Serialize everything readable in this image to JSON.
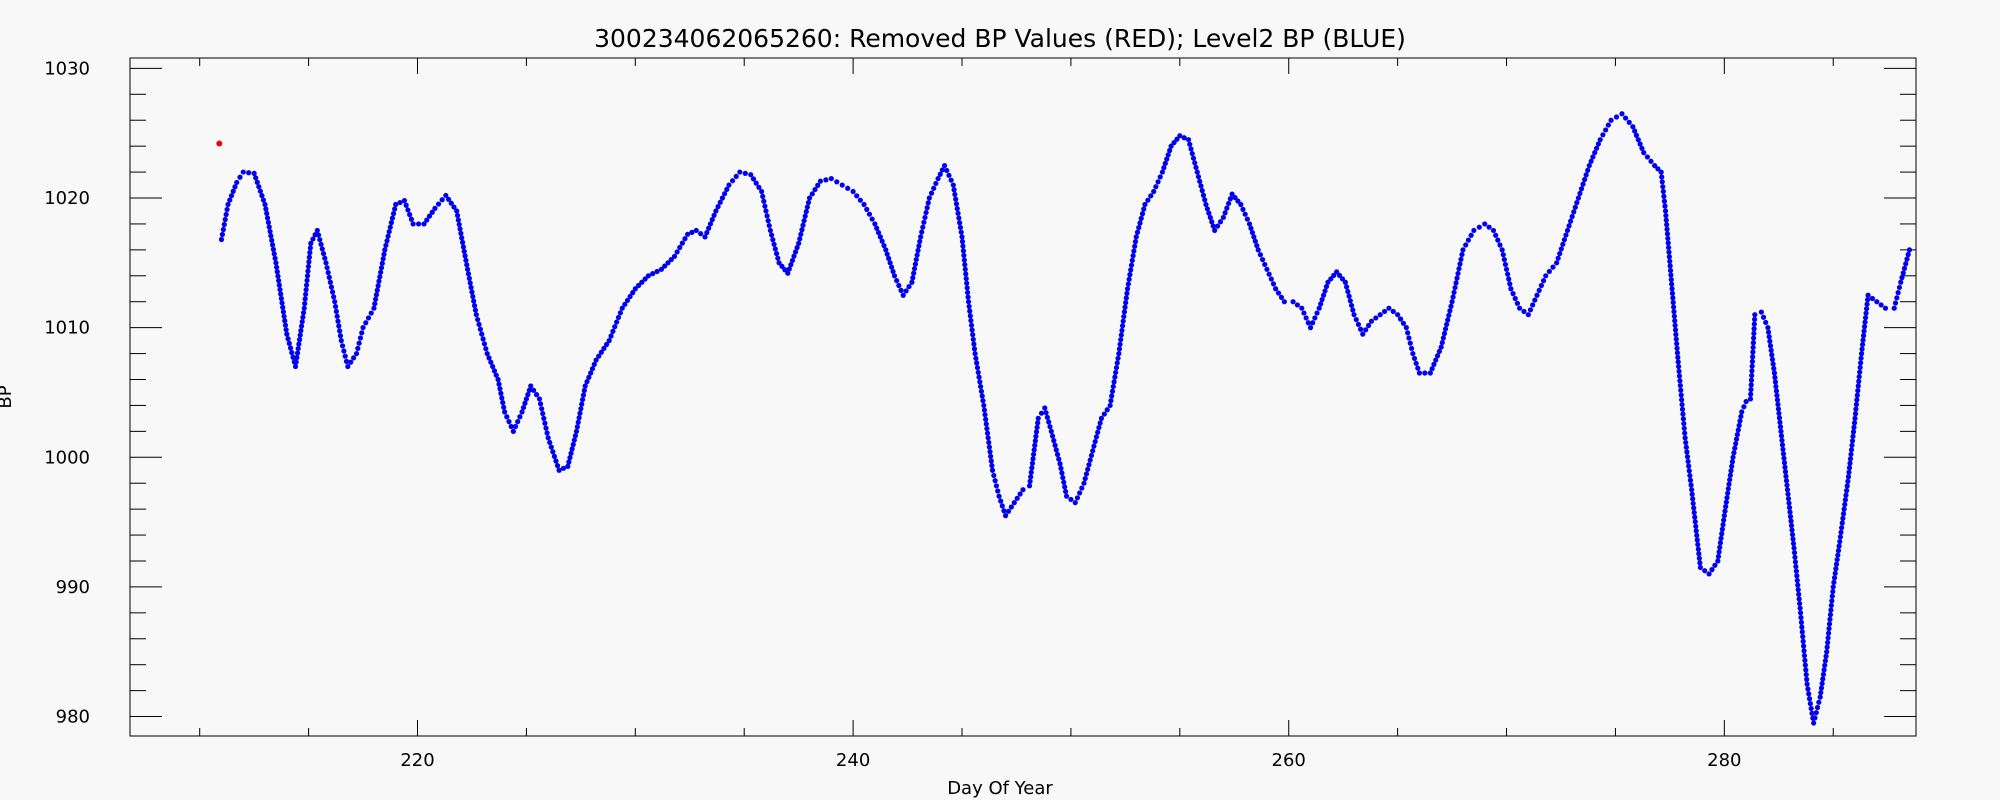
{
  "colors": {
    "background": "#f8f8f8",
    "level2": "#0000ee",
    "removed": "#ee0000"
  },
  "chart_data": {
    "type": "scatter",
    "title": "300234062065260: Removed BP Values (RED); Level2 BP (BLUE)",
    "xlabel": "Day Of Year",
    "ylabel": "BP",
    "xlim": [
      206.8,
      288.8
    ],
    "ylim": [
      978.5,
      1030.8
    ],
    "xticks": [
      220,
      240,
      260,
      280
    ],
    "yticks": [
      980,
      990,
      1000,
      1010,
      1020,
      1030
    ],
    "x_minor_step": 5,
    "y_minor_step": 2,
    "grid": false,
    "series": [
      {
        "name": "Level2 BP",
        "color": "#0000ee",
        "points": [
          [
            211.0,
            1016.8
          ],
          [
            211.3,
            1019.5
          ],
          [
            211.7,
            1021.2
          ],
          [
            212.0,
            1022.0
          ],
          [
            212.5,
            1021.9
          ],
          [
            213.0,
            1019.5
          ],
          [
            213.5,
            1015.0
          ],
          [
            214.0,
            1009.5
          ],
          [
            214.4,
            1007.0
          ],
          [
            214.8,
            1011.5
          ],
          [
            215.1,
            1016.5
          ],
          [
            215.4,
            1017.5
          ],
          [
            215.8,
            1015.0
          ],
          [
            216.2,
            1012.0
          ],
          [
            216.5,
            1009.0
          ],
          [
            216.8,
            1007.0
          ],
          [
            217.2,
            1008.0
          ],
          [
            217.5,
            1010.0
          ],
          [
            218.0,
            1011.5
          ],
          [
            218.5,
            1016.0
          ],
          [
            219.0,
            1019.5
          ],
          [
            219.4,
            1019.8
          ],
          [
            219.8,
            1018.0
          ],
          [
            220.3,
            1018.0
          ],
          [
            220.8,
            1019.2
          ],
          [
            221.3,
            1020.2
          ],
          [
            221.8,
            1019.0
          ],
          [
            222.3,
            1014.5
          ],
          [
            222.7,
            1011.0
          ],
          [
            223.2,
            1008.0
          ],
          [
            223.7,
            1006.0
          ],
          [
            224.0,
            1003.5
          ],
          [
            224.4,
            1002.0
          ],
          [
            224.8,
            1003.5
          ],
          [
            225.2,
            1005.5
          ],
          [
            225.6,
            1004.5
          ],
          [
            226.0,
            1001.5
          ],
          [
            226.5,
            999.0
          ],
          [
            226.9,
            999.3
          ],
          [
            227.3,
            1002.0
          ],
          [
            227.7,
            1005.5
          ],
          [
            228.2,
            1007.5
          ],
          [
            228.8,
            1009.0
          ],
          [
            229.4,
            1011.5
          ],
          [
            230.0,
            1013.0
          ],
          [
            230.6,
            1014.0
          ],
          [
            231.2,
            1014.5
          ],
          [
            231.8,
            1015.5
          ],
          [
            232.4,
            1017.2
          ],
          [
            232.8,
            1017.5
          ],
          [
            233.2,
            1017.0
          ],
          [
            233.7,
            1019.0
          ],
          [
            234.3,
            1021.0
          ],
          [
            234.8,
            1022.0
          ],
          [
            235.3,
            1021.8
          ],
          [
            235.8,
            1020.5
          ],
          [
            236.2,
            1017.5
          ],
          [
            236.6,
            1015.0
          ],
          [
            237.0,
            1014.2
          ],
          [
            237.5,
            1016.5
          ],
          [
            238.0,
            1020.0
          ],
          [
            238.5,
            1021.3
          ],
          [
            239.0,
            1021.5
          ],
          [
            239.5,
            1021.0
          ],
          [
            240.0,
            1020.5
          ],
          [
            240.5,
            1019.5
          ],
          [
            241.0,
            1018.0
          ],
          [
            241.5,
            1016.0
          ],
          [
            241.9,
            1014.0
          ],
          [
            242.3,
            1012.5
          ],
          [
            242.7,
            1013.5
          ],
          [
            243.1,
            1017.0
          ],
          [
            243.5,
            1020.0
          ],
          [
            243.9,
            1021.5
          ],
          [
            244.2,
            1022.5
          ],
          [
            244.6,
            1021.0
          ],
          [
            245.0,
            1017.0
          ],
          [
            245.3,
            1012.0
          ],
          [
            245.6,
            1008.0
          ],
          [
            246.0,
            1004.0
          ],
          [
            246.4,
            999.0
          ],
          [
            246.7,
            997.0
          ],
          [
            247.0,
            995.5
          ],
          [
            247.4,
            996.5
          ],
          [
            247.8,
            997.5
          ],
          [
            248.1,
            997.8
          ],
          [
            248.5,
            1003.0
          ],
          [
            248.8,
            1003.8
          ],
          [
            249.1,
            1002.0
          ],
          [
            249.5,
            999.5
          ],
          [
            249.8,
            997.0
          ],
          [
            250.2,
            996.5
          ],
          [
            250.6,
            998.0
          ],
          [
            251.0,
            1000.5
          ],
          [
            251.4,
            1003.0
          ],
          [
            251.8,
            1004.0
          ],
          [
            252.2,
            1008.0
          ],
          [
            252.6,
            1013.0
          ],
          [
            253.0,
            1017.0
          ],
          [
            253.4,
            1019.5
          ],
          [
            253.8,
            1020.5
          ],
          [
            254.2,
            1022.0
          ],
          [
            254.6,
            1024.0
          ],
          [
            255.0,
            1024.8
          ],
          [
            255.4,
            1024.5
          ],
          [
            255.8,
            1022.0
          ],
          [
            256.2,
            1019.5
          ],
          [
            256.6,
            1017.5
          ],
          [
            257.0,
            1018.5
          ],
          [
            257.4,
            1020.3
          ],
          [
            257.8,
            1019.5
          ],
          [
            258.2,
            1018.0
          ],
          [
            258.6,
            1016.0
          ],
          [
            259.0,
            1014.5
          ],
          [
            259.4,
            1013.0
          ],
          [
            259.8,
            1012.0
          ],
          [
            260.2,
            1012.0
          ],
          [
            260.6,
            1011.5
          ],
          [
            261.0,
            1010.0
          ],
          [
            261.4,
            1011.5
          ],
          [
            261.8,
            1013.5
          ],
          [
            262.2,
            1014.3
          ],
          [
            262.6,
            1013.5
          ],
          [
            263.0,
            1011.0
          ],
          [
            263.4,
            1009.5
          ],
          [
            263.8,
            1010.5
          ],
          [
            264.2,
            1011.0
          ],
          [
            264.6,
            1011.5
          ],
          [
            265.0,
            1011.0
          ],
          [
            265.4,
            1010.0
          ],
          [
            265.7,
            1008.0
          ],
          [
            266.0,
            1006.5
          ],
          [
            266.5,
            1006.5
          ],
          [
            267.0,
            1008.5
          ],
          [
            267.5,
            1012.0
          ],
          [
            268.0,
            1016.0
          ],
          [
            268.5,
            1017.5
          ],
          [
            269.0,
            1018.0
          ],
          [
            269.4,
            1017.5
          ],
          [
            269.8,
            1016.0
          ],
          [
            270.2,
            1013.0
          ],
          [
            270.6,
            1011.5
          ],
          [
            271.0,
            1011.0
          ],
          [
            271.4,
            1012.5
          ],
          [
            271.8,
            1014.0
          ],
          [
            272.3,
            1015.0
          ],
          [
            272.8,
            1017.5
          ],
          [
            273.3,
            1020.0
          ],
          [
            273.8,
            1022.5
          ],
          [
            274.3,
            1024.5
          ],
          [
            274.8,
            1026.0
          ],
          [
            275.3,
            1026.5
          ],
          [
            275.8,
            1025.5
          ],
          [
            276.3,
            1023.5
          ],
          [
            276.8,
            1022.5
          ],
          [
            277.1,
            1022.0
          ],
          [
            277.3,
            1019.0
          ],
          [
            277.6,
            1013.0
          ],
          [
            277.9,
            1007.0
          ],
          [
            278.2,
            1001.5
          ],
          [
            278.5,
            997.5
          ],
          [
            278.9,
            991.5
          ],
          [
            279.3,
            991.0
          ],
          [
            279.7,
            992.0
          ],
          [
            280.0,
            995.5
          ],
          [
            280.4,
            1000.0
          ],
          [
            280.8,
            1003.5
          ],
          [
            281.0,
            1004.3
          ],
          [
            281.2,
            1004.5
          ],
          [
            281.4,
            1011.0
          ],
          [
            281.7,
            1011.2
          ],
          [
            282.0,
            1010.0
          ],
          [
            282.3,
            1006.5
          ],
          [
            282.6,
            1002.0
          ],
          [
            282.9,
            997.5
          ],
          [
            283.2,
            993.0
          ],
          [
            283.5,
            988.0
          ],
          [
            283.8,
            982.5
          ],
          [
            284.1,
            979.5
          ],
          [
            284.4,
            981.5
          ],
          [
            284.7,
            985.0
          ],
          [
            285.0,
            990.0
          ],
          [
            285.3,
            993.5
          ],
          [
            285.7,
            998.5
          ],
          [
            286.0,
            1003.0
          ],
          [
            286.3,
            1008.0
          ],
          [
            286.6,
            1012.5
          ],
          [
            287.0,
            1012.0
          ],
          [
            287.4,
            1011.5
          ],
          [
            287.8,
            1011.5
          ],
          [
            288.1,
            1013.5
          ],
          [
            288.5,
            1016.0
          ]
        ]
      },
      {
        "name": "Removed BP Values",
        "color": "#ee0000",
        "points": [
          [
            210.9,
            1024.2
          ]
        ]
      }
    ]
  }
}
